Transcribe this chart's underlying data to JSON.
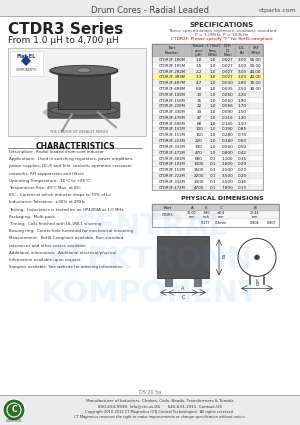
{
  "title_header": "Drum Cores - Radial Leaded",
  "website": "ctparts.com",
  "series_title": "CTDR3 Series",
  "series_subtitle": "From 1.0 μH to 4,700 μH",
  "specs_title": "SPECIFICATIONS",
  "specs_note1": "These specifications represent available standard",
  "specs_note2": "P = 1.0MHz, P = 100kHz",
  "specs_note3": "CTDR3F: Please specify \"F\" for RoHS-compliant",
  "characteristics_title": "CHARACTERISTICS",
  "char_lines": [
    "Description:  Radial leaded drum core inductor",
    "Applications:  Used in switching regulators, power amplifiers,",
    "power supplies, DC-R and Tele. controls, operation crossover",
    "networks, RFI suppression and filters",
    "Operating Temperature: -10°C to +85°C",
    "Temperature Rise: 40°C Max. at IDC",
    "IDC - Current at which inductor drops to 70% of Lo",
    "Inductance Tolerance: ±30% at 2MHz",
    "Testing:  Inductance is tested on an HP4284A at 1.0 MHz",
    "Packaging:  Multi-pack",
    "Tinning:  Coils finished with UL-VW-1 silvering",
    "Bowing ring:  Center hole furnished for mechanical mounting",
    "Measurement:  RoHS-Compliant available. Non-standard",
    "tolerances and other values available.",
    "Additional information:  Additional electrical/physical",
    "information available upon request.",
    "Samples available. See website for ordering information."
  ],
  "phys_dim_title": "PHYSICAL DIMENSIONS",
  "spec_data": [
    [
      "CTDR3F-1R0M",
      "1.0",
      "1.0",
      "0.027",
      "3.00",
      "55.00"
    ],
    [
      "CTDR3F-1R5M",
      "1.5",
      "1.0",
      "0.027",
      "3.00",
      "50.00"
    ],
    [
      "CTDR3F-2R2M",
      "2.2",
      "1.0",
      "0.027",
      "3.00",
      "44.00"
    ],
    [
      "CTDR3F-3R3M",
      "3.3",
      "1.0",
      "0.027",
      "3.00",
      "40.00"
    ],
    [
      "CTDR3F-4R7M",
      "4.7",
      "1.0",
      "0.030",
      "2.80",
      "35.00"
    ],
    [
      "CTDR3F-6R8M",
      "6.8",
      "1.0",
      "0.035",
      "2.50",
      "30.00"
    ],
    [
      "CTDR3F-100M",
      "10",
      "1.0",
      "0.050",
      "2.20",
      ""
    ],
    [
      "CTDR3F-150M",
      "15",
      "1.0",
      "0.060",
      "1.90",
      ""
    ],
    [
      "CTDR3F-220M",
      "22",
      "1.0",
      "0.068",
      "1.70",
      ""
    ],
    [
      "CTDR3F-330M",
      "33",
      "1.0",
      "0.090",
      "1.50",
      ""
    ],
    [
      "CTDR3F-470M",
      "47",
      "1.0",
      "0.110",
      "1.30",
      ""
    ],
    [
      "CTDR3F-680M",
      "68",
      "1.0",
      "0.140",
      "1.10",
      ""
    ],
    [
      "CTDR3F-101M",
      "100",
      "1.0",
      "0.190",
      "0.85",
      ""
    ],
    [
      "CTDR3F-151M",
      "150",
      "1.0",
      "0.280",
      "0.70",
      ""
    ],
    [
      "CTDR3F-221M",
      "220",
      "1.0",
      "0.380",
      "0.60",
      ""
    ],
    [
      "CTDR3F-331M",
      "330",
      "1.0",
      "0.560",
      "0.50",
      ""
    ],
    [
      "CTDR3F-471M",
      "470",
      "1.0",
      "0.800",
      "0.42",
      ""
    ],
    [
      "CTDR3F-681M",
      "680",
      "0.1",
      "1.100",
      "0.35",
      ""
    ],
    [
      "CTDR3F-102M",
      "1000",
      "0.1",
      "1.600",
      "0.29",
      ""
    ],
    [
      "CTDR3F-152M",
      "1500",
      "0.1",
      "2.500",
      "0.23",
      ""
    ],
    [
      "CTDR3F-222M",
      "2200",
      "0.1",
      "3.500",
      "0.20",
      ""
    ],
    [
      "CTDR3F-332M",
      "3300",
      "0.1",
      "5.500",
      "0.16",
      ""
    ],
    [
      "CTDR3F-472M",
      "4700",
      "0.1",
      "7.800",
      "0.13",
      ""
    ]
  ],
  "footer_address": "Manufacturer of Inductors, Chokes, Coils, Beads, Transformers & Toroids",
  "footer_phone": "800-654-9939  Info@ctr-us.US      540-633-1911  Contact-US",
  "footer_copy": "Copyright 2010-2012 CT Magnetics (CTJ Central Technologies). All rights reserved.",
  "footer_note": "CT Magnetics reserves the right to make improvements or change specification without notice.",
  "bg_color": "#ffffff",
  "highlight_row": 3,
  "highlight_color": "#ffff99"
}
